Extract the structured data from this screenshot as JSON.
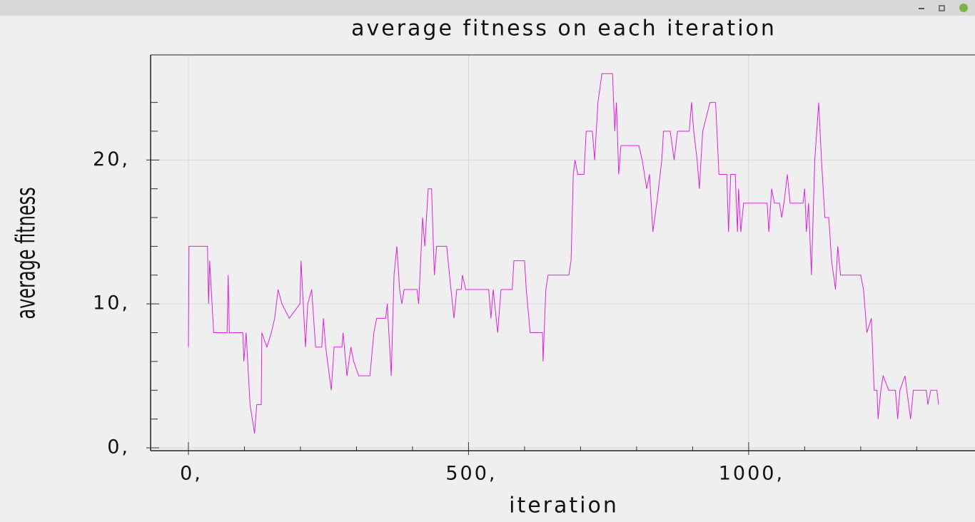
{
  "chart_data": {
    "type": "line",
    "title": "average fitness on each iteration",
    "x_label": "iteration",
    "y_label": "average fitness",
    "xlim": [
      -67.5,
      1404
    ],
    "ylim": [
      -0.2,
      27.3
    ],
    "xticks": [
      {
        "value": 0,
        "label": "0,"
      },
      {
        "value": 500,
        "label": "500,"
      },
      {
        "value": 1000,
        "label": "1000,"
      }
    ],
    "yticks": [
      {
        "value": 0,
        "label": "0,"
      },
      {
        "value": 10,
        "label": "10,"
      },
      {
        "value": 20,
        "label": "20,"
      }
    ],
    "xminorticks": [
      100,
      200,
      300,
      400,
      600,
      700,
      800,
      900,
      1100,
      1200,
      1300
    ],
    "yminorticks": [
      2,
      4,
      6,
      8,
      12,
      14,
      16,
      18,
      22,
      24
    ],
    "grid": true,
    "series": [
      {
        "name": "average fitness",
        "color": "#e020e0",
        "x": [
          0,
          1,
          34,
          36,
          38,
          45,
          69,
          71,
          73,
          97,
          99,
          103,
          110,
          118,
          122,
          130,
          131,
          140,
          148,
          154,
          160,
          167,
          180,
          199,
          201,
          209,
          213,
          220,
          227,
          238,
          241,
          245,
          255,
          260,
          274,
          276,
          283,
          290,
          295,
          304,
          324,
          331,
          336,
          352,
          355,
          362,
          367,
          372,
          377,
          381,
          385,
          408,
          411,
          418,
          422,
          428,
          434,
          439,
          443,
          461,
          466,
          474,
          479,
          487,
          489,
          495,
          498,
          536,
          540,
          544,
          552,
          558,
          578,
          581,
          600,
          603,
          610,
          632,
          633,
          638,
          642,
          679,
          683,
          687,
          690,
          695,
          706,
          710,
          721,
          725,
          731,
          738,
          757,
          761,
          764,
          768,
          772,
          804,
          810,
          818,
          823,
          829,
          836,
          845,
          848,
          860,
          867,
          873,
          894,
          898,
          902,
          908,
          912,
          918,
          931,
          941,
          947,
          961,
          964,
          968,
          976,
          980,
          982,
          986,
          991,
          1033,
          1036,
          1041,
          1046,
          1055,
          1059,
          1063,
          1069,
          1074,
          1097,
          1100,
          1103,
          1107,
          1112,
          1118,
          1125,
          1130,
          1136,
          1143,
          1148,
          1155,
          1159,
          1164,
          1192,
          1200,
          1205,
          1211,
          1219,
          1224,
          1229,
          1231,
          1236,
          1240,
          1250,
          1262,
          1266,
          1270,
          1279,
          1289,
          1294,
          1317,
          1320,
          1325,
          1336,
          1339
        ],
        "values": [
          7,
          14,
          14,
          10,
          13,
          8,
          8,
          12,
          8,
          8,
          6,
          8,
          3,
          1,
          3,
          3,
          8,
          7,
          8,
          9,
          11,
          10,
          9,
          10,
          13,
          7,
          10,
          11,
          7,
          7,
          9,
          7,
          4,
          7,
          7,
          8,
          5,
          7,
          6,
          5,
          5,
          8,
          9,
          9,
          10,
          5,
          12,
          14,
          11,
          10,
          11,
          11,
          10,
          16,
          14,
          18,
          18,
          12,
          14,
          14,
          12,
          9,
          11,
          11,
          12,
          11,
          11,
          11,
          9,
          11,
          8,
          11,
          11,
          13,
          13,
          11,
          8,
          8,
          6,
          11,
          12,
          12,
          13,
          19,
          20,
          19,
          19,
          22,
          22,
          20,
          24,
          26,
          26,
          22,
          24,
          19,
          21,
          21,
          20,
          18,
          19,
          15,
          17,
          20,
          22,
          22,
          20,
          22,
          22,
          24,
          22,
          20,
          18,
          22,
          24,
          24,
          19,
          19,
          15,
          19,
          19,
          15,
          18,
          15,
          17,
          17,
          15,
          18,
          17,
          17,
          16,
          17,
          19,
          17,
          17,
          18,
          15,
          17,
          12,
          20,
          24,
          20,
          16,
          16,
          13,
          11,
          14,
          12,
          12,
          12,
          11,
          8,
          9,
          4,
          4,
          2,
          4,
          5,
          4,
          4,
          2,
          4,
          5,
          2,
          4,
          4,
          3,
          4,
          4,
          3
        ]
      }
    ]
  }
}
